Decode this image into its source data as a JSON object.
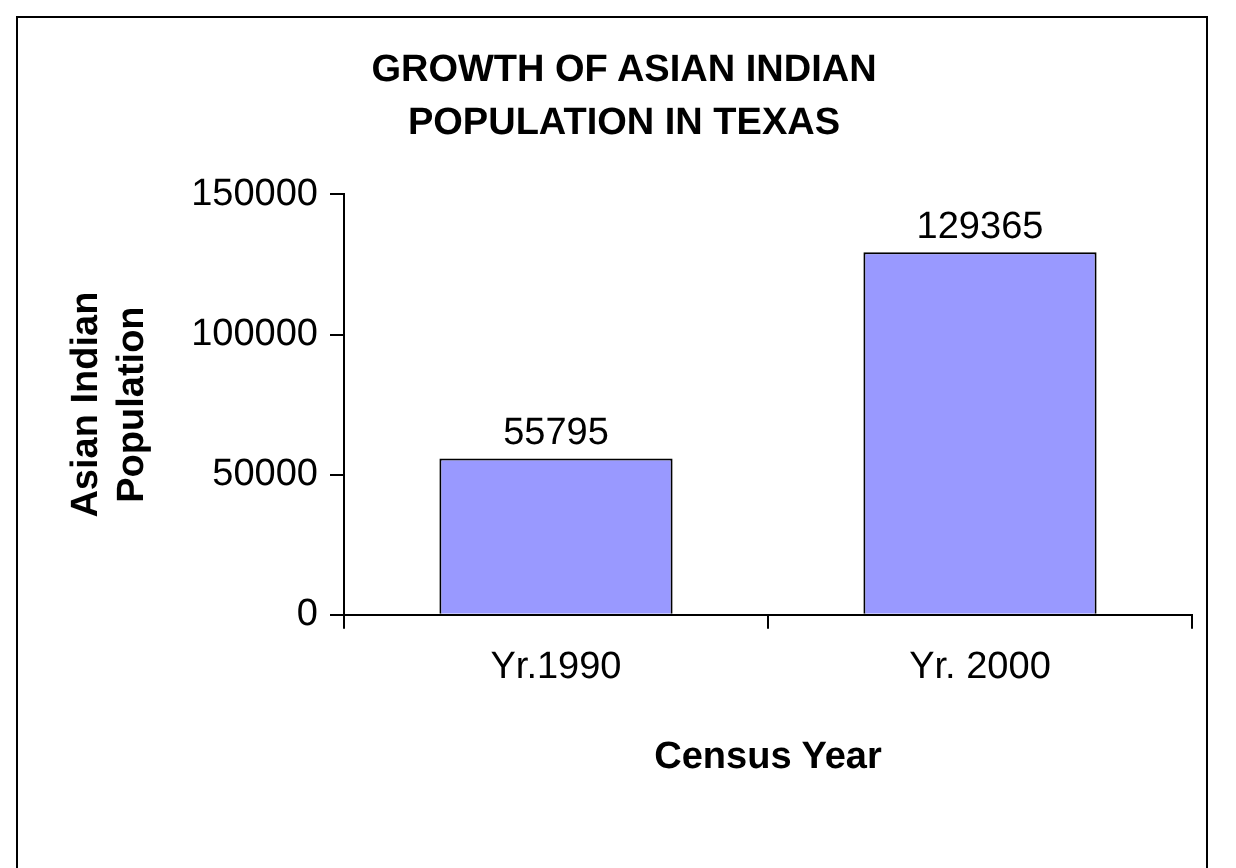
{
  "chart_data": {
    "type": "bar",
    "title": "GROWTH OF ASIAN INDIAN POPULATION IN TEXAS",
    "xlabel": "Census Year",
    "ylabel": "Asian Indian Population",
    "categories": [
      "Yr.1990",
      "Yr. 2000"
    ],
    "values": [
      55795,
      129365
    ],
    "color": "#9999ff",
    "ylim": [
      0,
      150000
    ],
    "yticks": [
      0,
      50000,
      100000,
      150000
    ],
    "grid": false,
    "legend": false,
    "data_labels": true
  }
}
